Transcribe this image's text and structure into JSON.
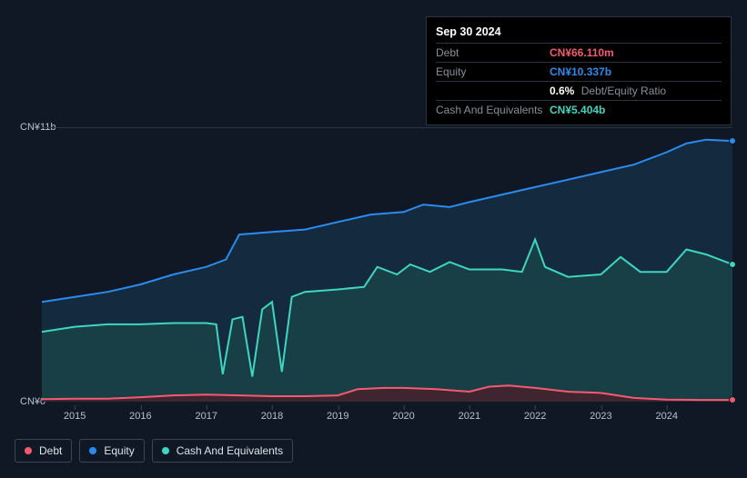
{
  "tooltip": {
    "date": "Sep 30 2024",
    "rows": [
      {
        "label": "Debt",
        "value": "CN¥66.110m",
        "class": "v-debt"
      },
      {
        "label": "Equity",
        "value": "CN¥10.337b",
        "class": "v-equity"
      },
      {
        "label": "",
        "value": "0.6%",
        "suffix": "Debt/Equity Ratio",
        "class": "v-ratio"
      },
      {
        "label": "Cash And Equivalents",
        "value": "CN¥5.404b",
        "class": "v-cash"
      }
    ]
  },
  "chart": {
    "type": "area",
    "background": "#0f1824",
    "grid_color": "#2a3544",
    "xlim": [
      2014.5,
      2025.0
    ],
    "x_ticks": [
      2015,
      2016,
      2017,
      2018,
      2019,
      2020,
      2021,
      2022,
      2023,
      2024
    ],
    "ylim": [
      0,
      11
    ],
    "y_labels": [
      {
        "text": "CN¥11b",
        "y": 11
      },
      {
        "text": "CN¥0",
        "y": 0
      }
    ],
    "series": {
      "equity": {
        "label": "Equity",
        "stroke": "#2a8cf0",
        "fill": "#17344f",
        "fill_opacity": 0.65,
        "line_width": 2,
        "points": [
          [
            2014.5,
            4.0
          ],
          [
            2015.0,
            4.2
          ],
          [
            2015.5,
            4.4
          ],
          [
            2016.0,
            4.7
          ],
          [
            2016.5,
            5.1
          ],
          [
            2017.0,
            5.4
          ],
          [
            2017.3,
            5.7
          ],
          [
            2017.5,
            6.7
          ],
          [
            2018.0,
            6.8
          ],
          [
            2018.5,
            6.9
          ],
          [
            2019.0,
            7.2
          ],
          [
            2019.5,
            7.5
          ],
          [
            2020.0,
            7.6
          ],
          [
            2020.3,
            7.9
          ],
          [
            2020.7,
            7.8
          ],
          [
            2021.0,
            8.0
          ],
          [
            2021.5,
            8.3
          ],
          [
            2022.0,
            8.6
          ],
          [
            2022.5,
            8.9
          ],
          [
            2023.0,
            9.2
          ],
          [
            2023.5,
            9.5
          ],
          [
            2024.0,
            10.0
          ],
          [
            2024.3,
            10.35
          ],
          [
            2024.6,
            10.5
          ],
          [
            2025.0,
            10.45
          ]
        ]
      },
      "cash": {
        "label": "Cash And Equivalents",
        "stroke": "#3fd6c0",
        "fill": "#1a4b4a",
        "fill_opacity": 0.65,
        "line_width": 2,
        "points": [
          [
            2014.5,
            2.8
          ],
          [
            2015.0,
            3.0
          ],
          [
            2015.5,
            3.1
          ],
          [
            2016.0,
            3.1
          ],
          [
            2016.5,
            3.15
          ],
          [
            2017.0,
            3.15
          ],
          [
            2017.15,
            3.1
          ],
          [
            2017.25,
            1.1
          ],
          [
            2017.4,
            3.3
          ],
          [
            2017.55,
            3.4
          ],
          [
            2017.7,
            1.0
          ],
          [
            2017.85,
            3.7
          ],
          [
            2018.0,
            4.0
          ],
          [
            2018.15,
            1.2
          ],
          [
            2018.3,
            4.2
          ],
          [
            2018.5,
            4.4
          ],
          [
            2019.0,
            4.5
          ],
          [
            2019.4,
            4.6
          ],
          [
            2019.6,
            5.4
          ],
          [
            2019.9,
            5.1
          ],
          [
            2020.1,
            5.5
          ],
          [
            2020.4,
            5.2
          ],
          [
            2020.7,
            5.6
          ],
          [
            2021.0,
            5.3
          ],
          [
            2021.5,
            5.3
          ],
          [
            2021.8,
            5.2
          ],
          [
            2022.0,
            6.5
          ],
          [
            2022.15,
            5.4
          ],
          [
            2022.5,
            5.0
          ],
          [
            2023.0,
            5.1
          ],
          [
            2023.3,
            5.8
          ],
          [
            2023.6,
            5.2
          ],
          [
            2024.0,
            5.2
          ],
          [
            2024.3,
            6.1
          ],
          [
            2024.6,
            5.9
          ],
          [
            2025.0,
            5.5
          ]
        ]
      },
      "debt": {
        "label": "Debt",
        "stroke": "#f55a6f",
        "fill": "#4a1f2a",
        "fill_opacity": 0.8,
        "line_width": 2,
        "points": [
          [
            2014.5,
            0.1
          ],
          [
            2015.0,
            0.12
          ],
          [
            2015.5,
            0.12
          ],
          [
            2016.0,
            0.18
          ],
          [
            2016.5,
            0.25
          ],
          [
            2017.0,
            0.28
          ],
          [
            2017.5,
            0.25
          ],
          [
            2018.0,
            0.22
          ],
          [
            2018.5,
            0.22
          ],
          [
            2019.0,
            0.25
          ],
          [
            2019.3,
            0.5
          ],
          [
            2019.7,
            0.55
          ],
          [
            2020.0,
            0.55
          ],
          [
            2020.5,
            0.5
          ],
          [
            2021.0,
            0.4
          ],
          [
            2021.3,
            0.6
          ],
          [
            2021.6,
            0.65
          ],
          [
            2022.0,
            0.55
          ],
          [
            2022.5,
            0.4
          ],
          [
            2023.0,
            0.35
          ],
          [
            2023.5,
            0.15
          ],
          [
            2024.0,
            0.08
          ],
          [
            2024.5,
            0.07
          ],
          [
            2025.0,
            0.07
          ]
        ]
      }
    },
    "markers": [
      {
        "series": "equity",
        "x": 2025.0,
        "y": 10.45,
        "color": "#2a8cf0"
      },
      {
        "series": "cash",
        "x": 2025.0,
        "y": 5.5,
        "color": "#3fd6c0"
      },
      {
        "series": "debt",
        "x": 2025.0,
        "y": 0.07,
        "color": "#f55a6f"
      }
    ]
  },
  "legend": [
    {
      "label": "Debt",
      "color": "#f55a6f"
    },
    {
      "label": "Equity",
      "color": "#2a8cf0"
    },
    {
      "label": "Cash And Equivalents",
      "color": "#3fd6c0"
    }
  ]
}
